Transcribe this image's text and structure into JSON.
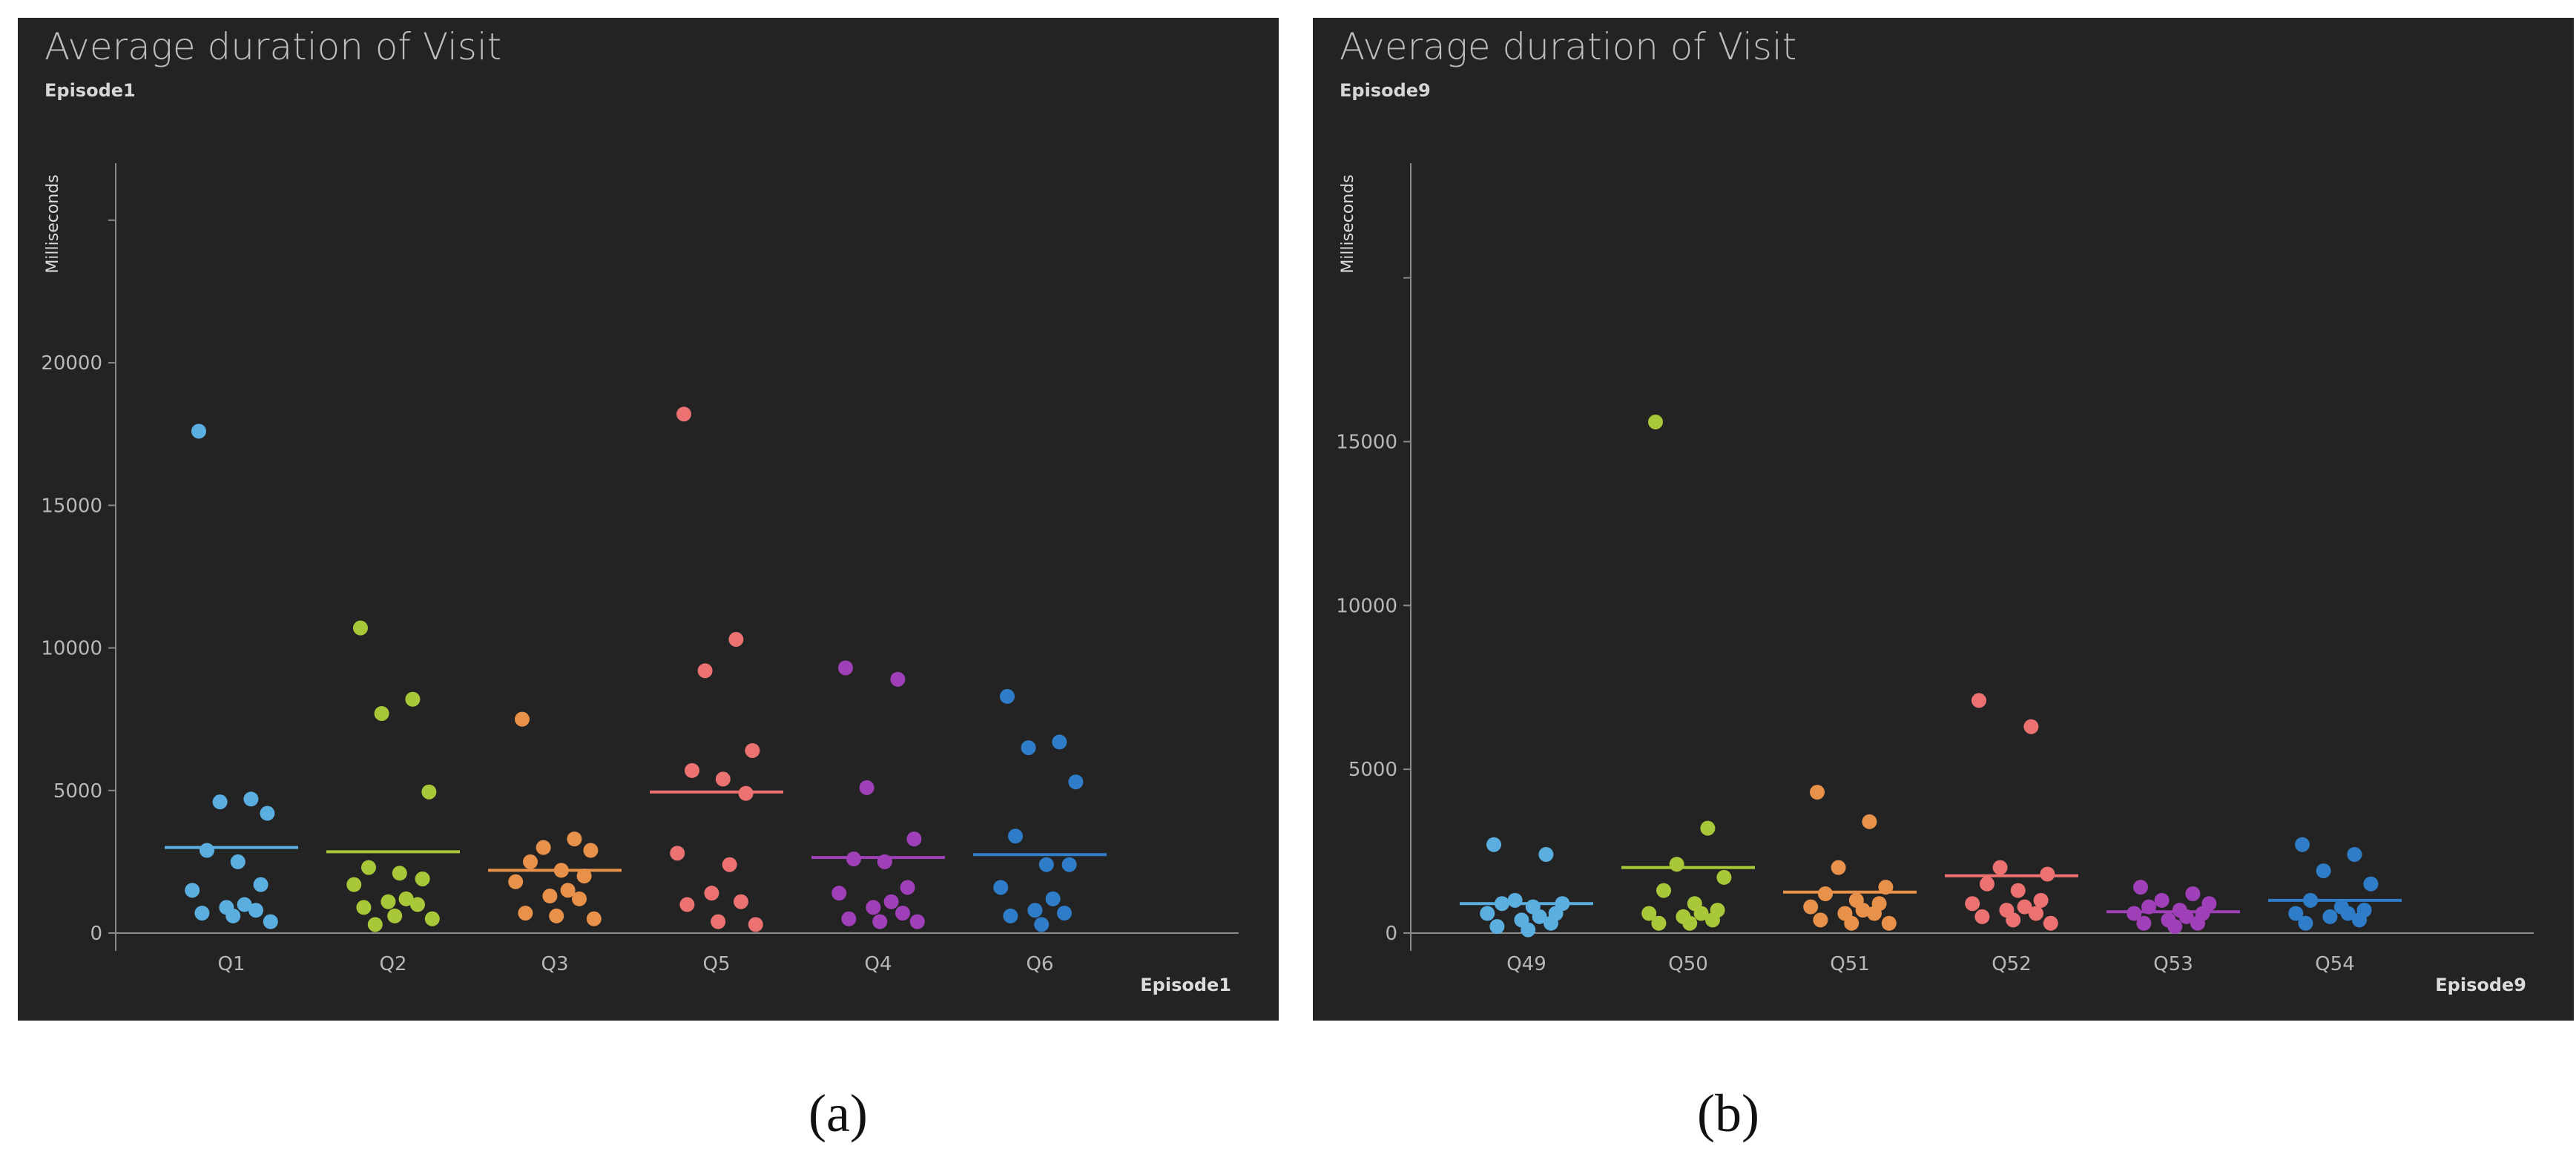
{
  "colors": {
    "panel_bg": "#232323",
    "axis": "#8a8a8a",
    "text": "#b8b8b8"
  },
  "captions": [
    "(a)",
    "(b)"
  ],
  "chart_data": [
    {
      "type": "scatter",
      "title": "Average duration of Visit",
      "subtitle": "Episode1",
      "xlabel": "Episode1",
      "ylabel": "Milliseconds",
      "ylim": [
        0,
        27000
      ],
      "yticks": [
        0,
        5000,
        10000,
        15000,
        20000,
        25000
      ],
      "ytick_labels": [
        "0",
        "5000",
        "10000",
        "15000",
        "20000",
        ""
      ],
      "categories": [
        "Q1",
        "Q2",
        "Q3",
        "Q5",
        "Q4",
        "Q6"
      ],
      "colors": [
        "#5aaee0",
        "#a8c83a",
        "#e8914a",
        "#ec7272",
        "#a040b8",
        "#2f7cc8"
      ],
      "means": [
        3000,
        2850,
        2200,
        4950,
        2650,
        2750
      ],
      "series": [
        {
          "values": [
            17600,
            4700,
            4600,
            4200,
            2900,
            2500,
            1700,
            1500,
            1000,
            900,
            800,
            700,
            600,
            400
          ]
        },
        {
          "values": [
            10700,
            8200,
            7700,
            4950,
            2300,
            2100,
            1900,
            1700,
            1200,
            1100,
            1000,
            900,
            600,
            500,
            300
          ]
        },
        {
          "values": [
            7500,
            3300,
            3000,
            2900,
            2500,
            2200,
            2000,
            1800,
            1500,
            1300,
            1200,
            700,
            600,
            500
          ]
        },
        {
          "values": [
            18200,
            10300,
            9200,
            6400,
            5700,
            5400,
            4900,
            2800,
            2400,
            1400,
            1100,
            1000,
            400,
            300
          ]
        },
        {
          "values": [
            9300,
            8900,
            5100,
            3300,
            2600,
            2500,
            1600,
            1400,
            1100,
            900,
            700,
            500,
            400,
            400
          ]
        },
        {
          "values": [
            8300,
            6700,
            6500,
            5300,
            3400,
            2400,
            2400,
            1600,
            1200,
            800,
            700,
            600,
            300
          ]
        }
      ]
    },
    {
      "type": "scatter",
      "title": "Average duration of Visit",
      "subtitle": "Episode9",
      "xlabel": "Episode9",
      "ylabel": "Milliseconds",
      "ylim": [
        0,
        23500
      ],
      "yticks": [
        0,
        5000,
        10000,
        15000,
        20000
      ],
      "ytick_labels": [
        "0",
        "5000",
        "10000",
        "15000",
        ""
      ],
      "categories": [
        "Q49",
        "Q50",
        "Q51",
        "Q52",
        "Q53",
        "Q54"
      ],
      "colors": [
        "#5aaee0",
        "#a8c83a",
        "#e8914a",
        "#ec7272",
        "#a040b8",
        "#2f7cc8"
      ],
      "means": [
        900,
        2000,
        1250,
        1750,
        650,
        1000
      ],
      "series": [
        {
          "values": [
            2700,
            2400,
            1000,
            900,
            900,
            800,
            600,
            600,
            500,
            400,
            300,
            200,
            100
          ]
        },
        {
          "values": [
            15600,
            3200,
            2100,
            1700,
            1300,
            900,
            700,
            600,
            600,
            500,
            400,
            300,
            300
          ]
        },
        {
          "values": [
            4300,
            3400,
            2000,
            1400,
            1200,
            1000,
            900,
            800,
            700,
            600,
            600,
            400,
            300,
            300
          ]
        },
        {
          "values": [
            7100,
            6300,
            2000,
            1800,
            1500,
            1300,
            1000,
            900,
            800,
            700,
            600,
            500,
            400,
            300
          ]
        },
        {
          "values": [
            1400,
            1200,
            1000,
            900,
            800,
            700,
            600,
            600,
            500,
            400,
            300,
            300,
            200
          ]
        },
        {
          "values": [
            2700,
            2400,
            1900,
            1500,
            1000,
            800,
            700,
            600,
            600,
            500,
            400,
            300
          ]
        }
      ]
    }
  ]
}
